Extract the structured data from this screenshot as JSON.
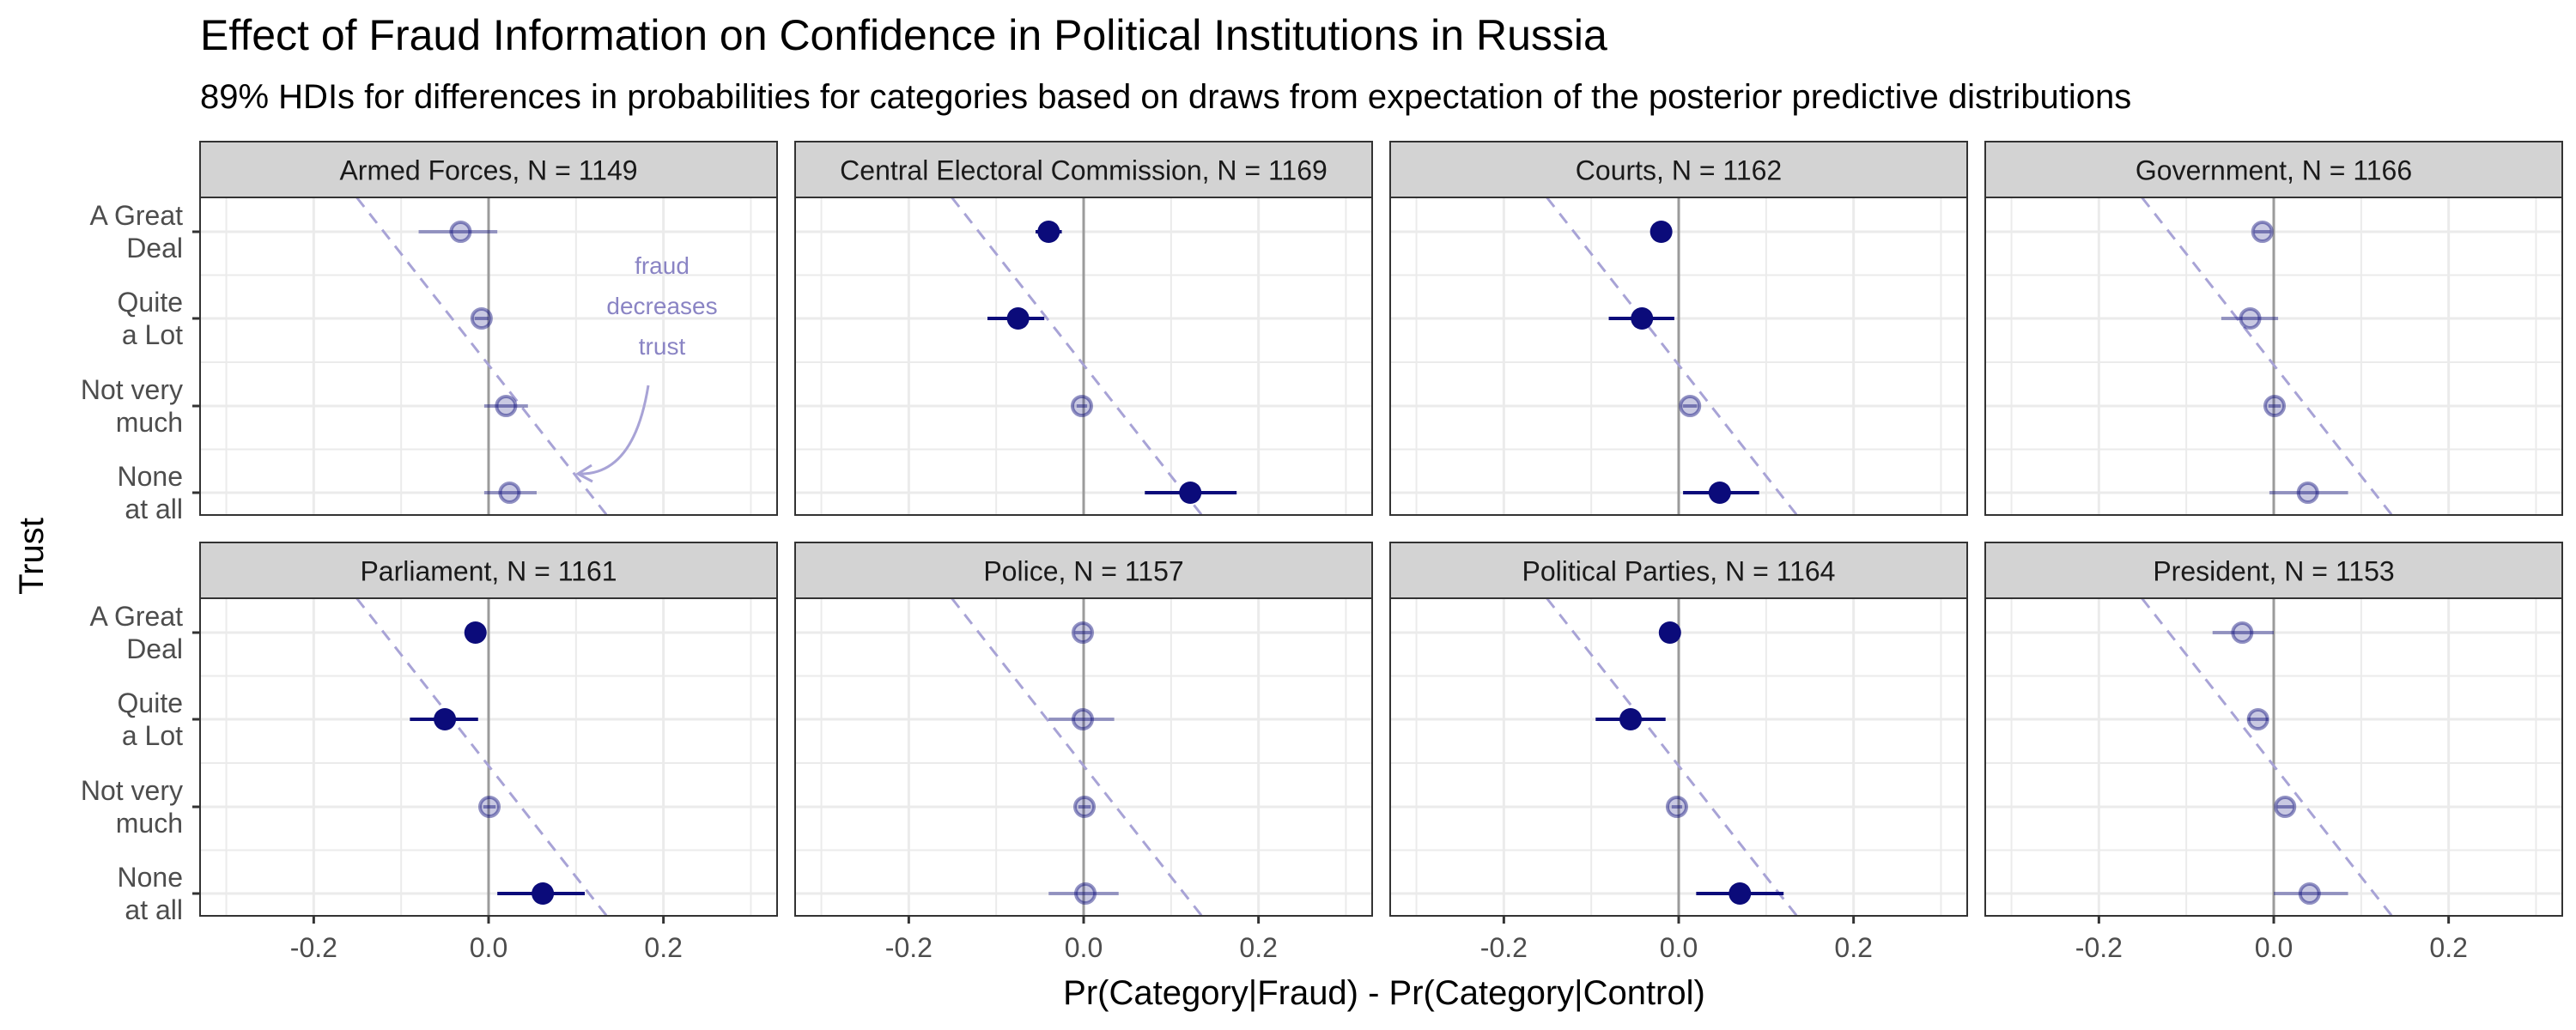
{
  "title": "Effect of Fraud Information on Confidence in Political Institutions in Russia",
  "subtitle": "89% HDIs for differences in probabilities for categories based on draws from expectation of the posterior predictive distributions",
  "ylabel": "Trust",
  "xlabel": "Pr(Category|Fraud) - Pr(Category|Control)",
  "annotation": [
    "fraud",
    "decreases",
    "trust"
  ],
  "colors": {
    "point": "#0b0b7a",
    "panel_header": "#d3d3d3",
    "grid": "#ebebeb",
    "reference": "#9b9b9b",
    "dashed": "#a8a3d6",
    "annotation": "#8a84c4"
  },
  "chart_data": {
    "type": "scatter",
    "grid": true,
    "xlim": [
      -0.33,
      0.33
    ],
    "x_ticks": [
      -0.2,
      0.0,
      0.2
    ],
    "x_tick_labels": [
      "-0.2",
      "0.0",
      "0.2"
    ],
    "categories": [
      "A Great Deal",
      "Quite a Lot",
      "Not very much",
      "None at all"
    ],
    "category_labels": [
      [
        "A Great",
        "Deal"
      ],
      [
        "Quite",
        "a Lot"
      ],
      [
        "Not very",
        "much"
      ],
      [
        "None",
        "at all"
      ]
    ],
    "reference_line": {
      "slope_x_per_category": 0.0783,
      "x_at_none": 0.115
    },
    "panels": [
      {
        "name": "Armed Forces, N = 1149",
        "points": [
          {
            "category": "A Great Deal",
            "x": -0.032,
            "low": -0.08,
            "high": 0.01,
            "credible": false
          },
          {
            "category": "Quite a Lot",
            "x": -0.008,
            "low": -0.016,
            "high": 0.0,
            "credible": false
          },
          {
            "category": "Not very much",
            "x": 0.02,
            "low": -0.005,
            "high": 0.045,
            "credible": false
          },
          {
            "category": "None at all",
            "x": 0.024,
            "low": -0.005,
            "high": 0.055,
            "credible": false
          }
        ]
      },
      {
        "name": "Central Electoral Commission, N = 1169",
        "points": [
          {
            "category": "A Great Deal",
            "x": -0.04,
            "low": -0.055,
            "high": -0.025,
            "credible": true
          },
          {
            "category": "Quite a Lot",
            "x": -0.075,
            "low": -0.11,
            "high": -0.045,
            "credible": true
          },
          {
            "category": "Not very much",
            "x": -0.002,
            "low": -0.008,
            "high": 0.004,
            "credible": false
          },
          {
            "category": "None at all",
            "x": 0.122,
            "low": 0.07,
            "high": 0.175,
            "credible": true
          }
        ]
      },
      {
        "name": "Courts, N = 1162",
        "points": [
          {
            "category": "A Great Deal",
            "x": -0.02,
            "low": -0.03,
            "high": -0.01,
            "credible": true
          },
          {
            "category": "Quite a Lot",
            "x": -0.042,
            "low": -0.08,
            "high": -0.005,
            "credible": true
          },
          {
            "category": "Not very much",
            "x": 0.013,
            "low": 0.005,
            "high": 0.021,
            "credible": false
          },
          {
            "category": "None at all",
            "x": 0.047,
            "low": 0.005,
            "high": 0.092,
            "credible": true
          }
        ]
      },
      {
        "name": "Government, N = 1166",
        "points": [
          {
            "category": "A Great Deal",
            "x": -0.013,
            "low": -0.022,
            "high": -0.004,
            "credible": false
          },
          {
            "category": "Quite a Lot",
            "x": -0.027,
            "low": -0.06,
            "high": 0.005,
            "credible": false
          },
          {
            "category": "Not very much",
            "x": 0.001,
            "low": -0.006,
            "high": 0.008,
            "credible": false
          },
          {
            "category": "None at all",
            "x": 0.039,
            "low": -0.005,
            "high": 0.085,
            "credible": false
          }
        ]
      },
      {
        "name": "Parliament, N = 1161",
        "points": [
          {
            "category": "A Great Deal",
            "x": -0.015,
            "low": -0.025,
            "high": -0.005,
            "credible": true
          },
          {
            "category": "Quite a Lot",
            "x": -0.05,
            "low": -0.09,
            "high": -0.012,
            "credible": true
          },
          {
            "category": "Not very much",
            "x": 0.001,
            "low": -0.006,
            "high": 0.008,
            "credible": false
          },
          {
            "category": "None at all",
            "x": 0.062,
            "low": 0.01,
            "high": 0.11,
            "credible": true
          }
        ]
      },
      {
        "name": "Police, N = 1157",
        "points": [
          {
            "category": "A Great Deal",
            "x": -0.001,
            "low": -0.01,
            "high": 0.008,
            "credible": false
          },
          {
            "category": "Quite a Lot",
            "x": -0.001,
            "low": -0.04,
            "high": 0.035,
            "credible": false
          },
          {
            "category": "Not very much",
            "x": 0.001,
            "low": -0.006,
            "high": 0.008,
            "credible": false
          },
          {
            "category": "None at all",
            "x": 0.002,
            "low": -0.04,
            "high": 0.04,
            "credible": false
          }
        ]
      },
      {
        "name": "Political Parties, N = 1164",
        "points": [
          {
            "category": "A Great Deal",
            "x": -0.01,
            "low": -0.018,
            "high": -0.002,
            "credible": true
          },
          {
            "category": "Quite a Lot",
            "x": -0.055,
            "low": -0.095,
            "high": -0.015,
            "credible": true
          },
          {
            "category": "Not very much",
            "x": -0.002,
            "low": -0.008,
            "high": 0.004,
            "credible": false
          },
          {
            "category": "None at all",
            "x": 0.07,
            "low": 0.02,
            "high": 0.12,
            "credible": true
          }
        ]
      },
      {
        "name": "President, N = 1153",
        "points": [
          {
            "category": "A Great Deal",
            "x": -0.036,
            "low": -0.07,
            "high": 0.0,
            "credible": false
          },
          {
            "category": "Quite a Lot",
            "x": -0.018,
            "low": -0.03,
            "high": -0.006,
            "credible": false
          },
          {
            "category": "Not very much",
            "x": 0.013,
            "low": 0.004,
            "high": 0.022,
            "credible": false
          },
          {
            "category": "None at all",
            "x": 0.041,
            "low": 0.0,
            "high": 0.085,
            "credible": false
          }
        ]
      }
    ]
  }
}
